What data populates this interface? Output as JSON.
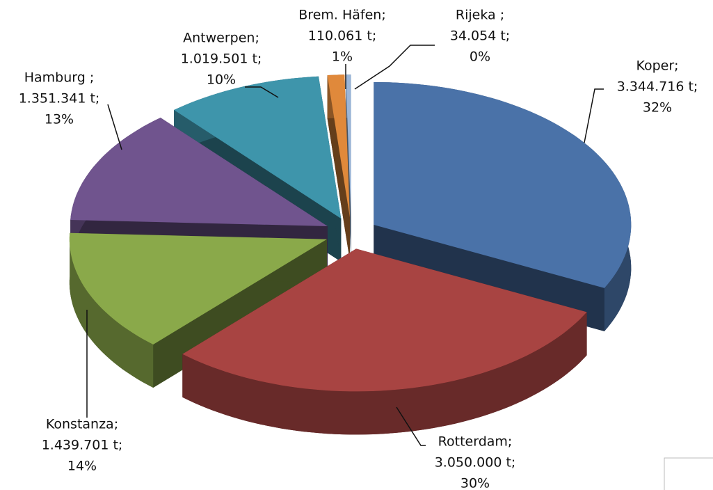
{
  "chart_data": {
    "type": "pie3d",
    "categories": [
      "Koper;",
      "Rotterdam;",
      "Konstanza;",
      "Hamburg ;",
      "Antwerpen;",
      "Brem. Häfen;",
      "Rijeka ;"
    ],
    "values": [
      3344716,
      3050000,
      1439701,
      1351341,
      1019501,
      110061,
      34054
    ],
    "value_labels": [
      "3.344.716 t;",
      "3.050.000 t;",
      "1.439.701 t;",
      "1.351.341 t;",
      "1.019.501 t;",
      "110.061 t;",
      "34.054 t;"
    ],
    "percents": [
      32,
      30,
      14,
      13,
      10,
      1,
      0
    ],
    "percent_labels": [
      "32%",
      "30%",
      "14%",
      "13%",
      "10%",
      "1%",
      "0%"
    ],
    "colors": [
      "#4a72a8",
      "#a84442",
      "#8aa94a",
      "#70548e",
      "#3e95ab",
      "#e0893b",
      "#9bb6d8"
    ]
  }
}
